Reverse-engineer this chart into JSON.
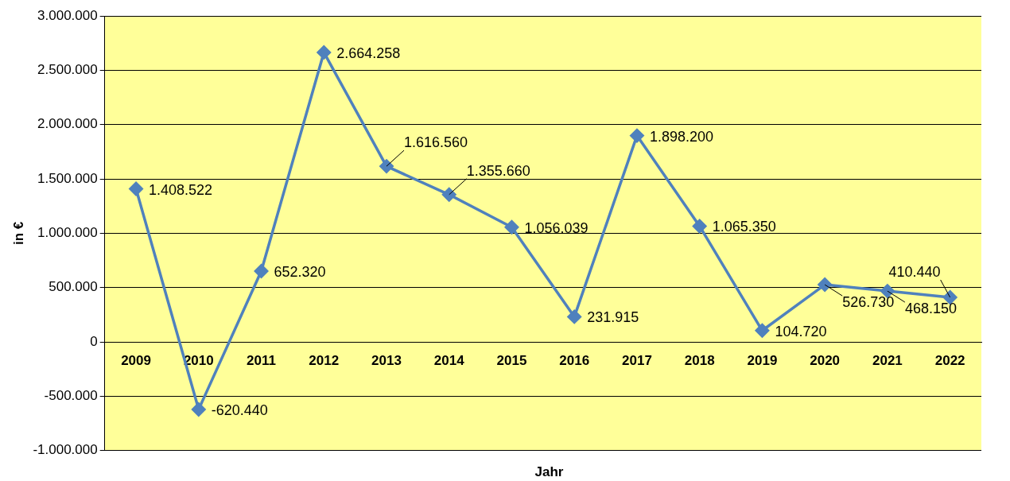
{
  "chart_data": {
    "type": "line",
    "xlabel": "Jahr",
    "ylabel": "in €",
    "categories": [
      "2009",
      "2010",
      "2011",
      "2012",
      "2013",
      "2014",
      "2015",
      "2016",
      "2017",
      "2018",
      "2019",
      "2020",
      "2021",
      "2022"
    ],
    "series": [
      {
        "color": "#4f81bd",
        "values": [
          1408522,
          -620440,
          652320,
          2664258,
          1616560,
          1355660,
          1056039,
          231915,
          1898200,
          1065350,
          104720,
          526730,
          468150,
          410440
        ],
        "value_labels": [
          "1.408.522",
          "-620.440",
          "652.320",
          "2.664.258",
          "1.616.560",
          "1.355.660",
          "1.056.039",
          "231.915",
          "1.898.200",
          "1.065.350",
          "104.720",
          "526.730",
          "468.150",
          "410.440"
        ]
      }
    ],
    "ylim": [
      -1000000,
      3000000
    ],
    "yticks": [
      {
        "value": -1000000,
        "label": "-1.000.000"
      },
      {
        "value": -500000,
        "label": "-500.000"
      },
      {
        "value": 0,
        "label": "0"
      },
      {
        "value": 500000,
        "label": "500.000"
      },
      {
        "value": 1000000,
        "label": "1.000.000"
      },
      {
        "value": 1500000,
        "label": "1.500.000"
      },
      {
        "value": 2000000,
        "label": "2.000.000"
      },
      {
        "value": 2500000,
        "label": "2.500.000"
      },
      {
        "value": 3000000,
        "label": "3.000.000"
      }
    ],
    "grid": "y",
    "legend": false,
    "marker": "diamond",
    "line_style": "solid"
  }
}
